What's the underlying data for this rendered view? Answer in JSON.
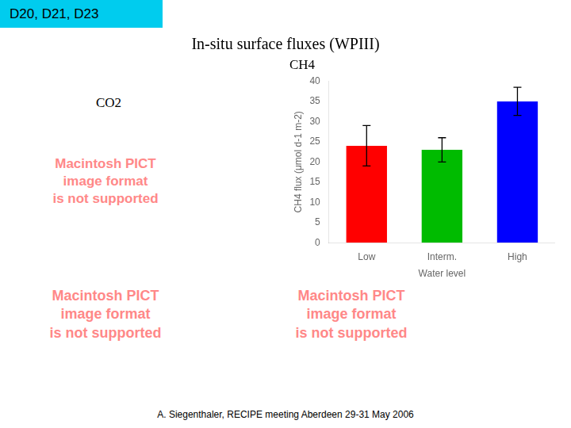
{
  "chart_data": {
    "type": "bar",
    "title": "CH4",
    "categories": [
      "Low",
      "Interm.",
      "High"
    ],
    "values": [
      24.0,
      23.0,
      35.0
    ],
    "errors": [
      5.0,
      3.0,
      3.5
    ],
    "colors": [
      "#FF0000",
      "#00BB00",
      "#0000FF"
    ],
    "xlabel": "Water level",
    "ylabel": "CH4 flux (μmol d-1 m-2)",
    "ylim": [
      0,
      40
    ],
    "yticks": [
      0,
      5,
      10,
      15,
      20,
      25,
      30,
      35,
      40
    ],
    "grid": false,
    "annotations": [
      "D20, D21, D23",
      "In-situ surface fluxes (WPIII)",
      "CO2",
      "Macintosh PICT\nimage format\nis not supported",
      "Macintosh PICT\nimage format\nis not supported",
      "Macintosh PICT\nimage format\nis not supported",
      "A. Siegenthaler, RECIPE meeting Aberdeen 29-31 May 2006"
    ]
  }
}
